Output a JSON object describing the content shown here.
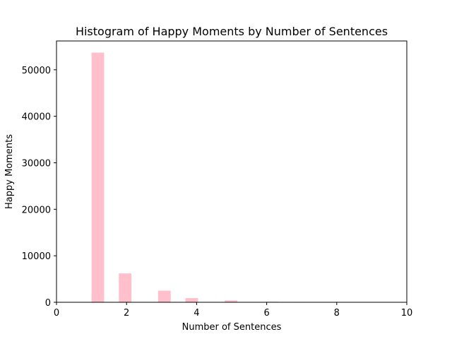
{
  "chart_data": {
    "type": "bar",
    "title": "Histogram of Happy Moments by Number of Sentences",
    "xlabel": "Number of Sentences",
    "ylabel": "Happy Moments",
    "xlim": [
      0,
      10
    ],
    "ylim": [
      0,
      56200
    ],
    "xticks": [
      0,
      2,
      4,
      6,
      8,
      10
    ],
    "yticks": [
      0,
      10000,
      20000,
      30000,
      40000,
      50000
    ],
    "bar_width": 0.36,
    "color": "#ffc0cb",
    "grid": false,
    "bars": [
      {
        "x": 1.18,
        "value": 53700
      },
      {
        "x": 1.96,
        "value": 6200
      },
      {
        "x": 3.08,
        "value": 2500
      },
      {
        "x": 3.86,
        "value": 900
      },
      {
        "x": 4.98,
        "value": 400
      },
      {
        "x": 6.15,
        "value": 120
      },
      {
        "x": 6.92,
        "value": 80
      },
      {
        "x": 8.05,
        "value": 30
      },
      {
        "x": 8.85,
        "value": 20
      },
      {
        "x": 9.62,
        "value": 10
      }
    ]
  }
}
